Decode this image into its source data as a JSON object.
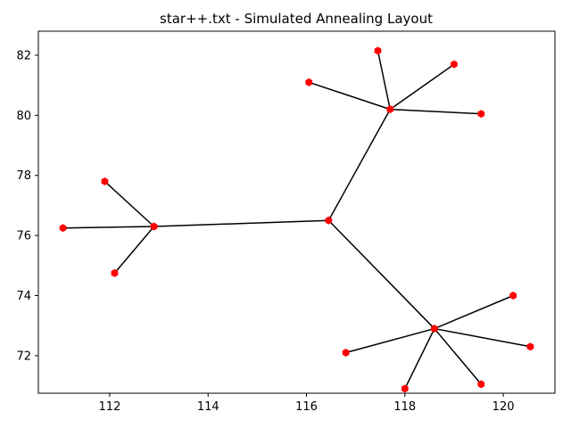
{
  "chart_data": {
    "type": "scatter",
    "title": "star++.txt - Simulated Annealing Layout",
    "xlabel": "",
    "ylabel": "",
    "xlim": [
      110.55,
      121.05
    ],
    "ylim": [
      70.75,
      82.8
    ],
    "xticks": [
      112,
      114,
      116,
      118,
      120
    ],
    "yticks": [
      72,
      74,
      76,
      78,
      80,
      82
    ],
    "grid": false,
    "node_color": "#ff0000",
    "edge_color": "#000000",
    "nodes": [
      {
        "id": "center",
        "x": 116.45,
        "y": 76.5
      },
      {
        "id": "hub_top",
        "x": 117.7,
        "y": 80.2
      },
      {
        "id": "hub_left",
        "x": 112.9,
        "y": 76.3
      },
      {
        "id": "hub_bottom",
        "x": 118.6,
        "y": 72.9
      },
      {
        "id": "t1",
        "x": 116.05,
        "y": 81.1
      },
      {
        "id": "t2",
        "x": 117.45,
        "y": 82.15
      },
      {
        "id": "t3",
        "x": 119.0,
        "y": 81.7
      },
      {
        "id": "t4",
        "x": 119.55,
        "y": 80.05
      },
      {
        "id": "l1",
        "x": 111.9,
        "y": 77.8
      },
      {
        "id": "l2",
        "x": 111.05,
        "y": 76.25
      },
      {
        "id": "l3",
        "x": 112.1,
        "y": 74.75
      },
      {
        "id": "b1",
        "x": 116.8,
        "y": 72.1
      },
      {
        "id": "b2",
        "x": 118.0,
        "y": 70.9
      },
      {
        "id": "b3",
        "x": 119.55,
        "y": 71.05
      },
      {
        "id": "b4",
        "x": 120.55,
        "y": 72.3
      },
      {
        "id": "b5",
        "x": 120.2,
        "y": 74.0
      }
    ],
    "edges": [
      [
        "center",
        "hub_top"
      ],
      [
        "center",
        "hub_left"
      ],
      [
        "center",
        "hub_bottom"
      ],
      [
        "hub_top",
        "t1"
      ],
      [
        "hub_top",
        "t2"
      ],
      [
        "hub_top",
        "t3"
      ],
      [
        "hub_top",
        "t4"
      ],
      [
        "hub_left",
        "l1"
      ],
      [
        "hub_left",
        "l2"
      ],
      [
        "hub_left",
        "l3"
      ],
      [
        "hub_bottom",
        "b1"
      ],
      [
        "hub_bottom",
        "b2"
      ],
      [
        "hub_bottom",
        "b3"
      ],
      [
        "hub_bottom",
        "b4"
      ],
      [
        "hub_bottom",
        "b5"
      ]
    ]
  }
}
